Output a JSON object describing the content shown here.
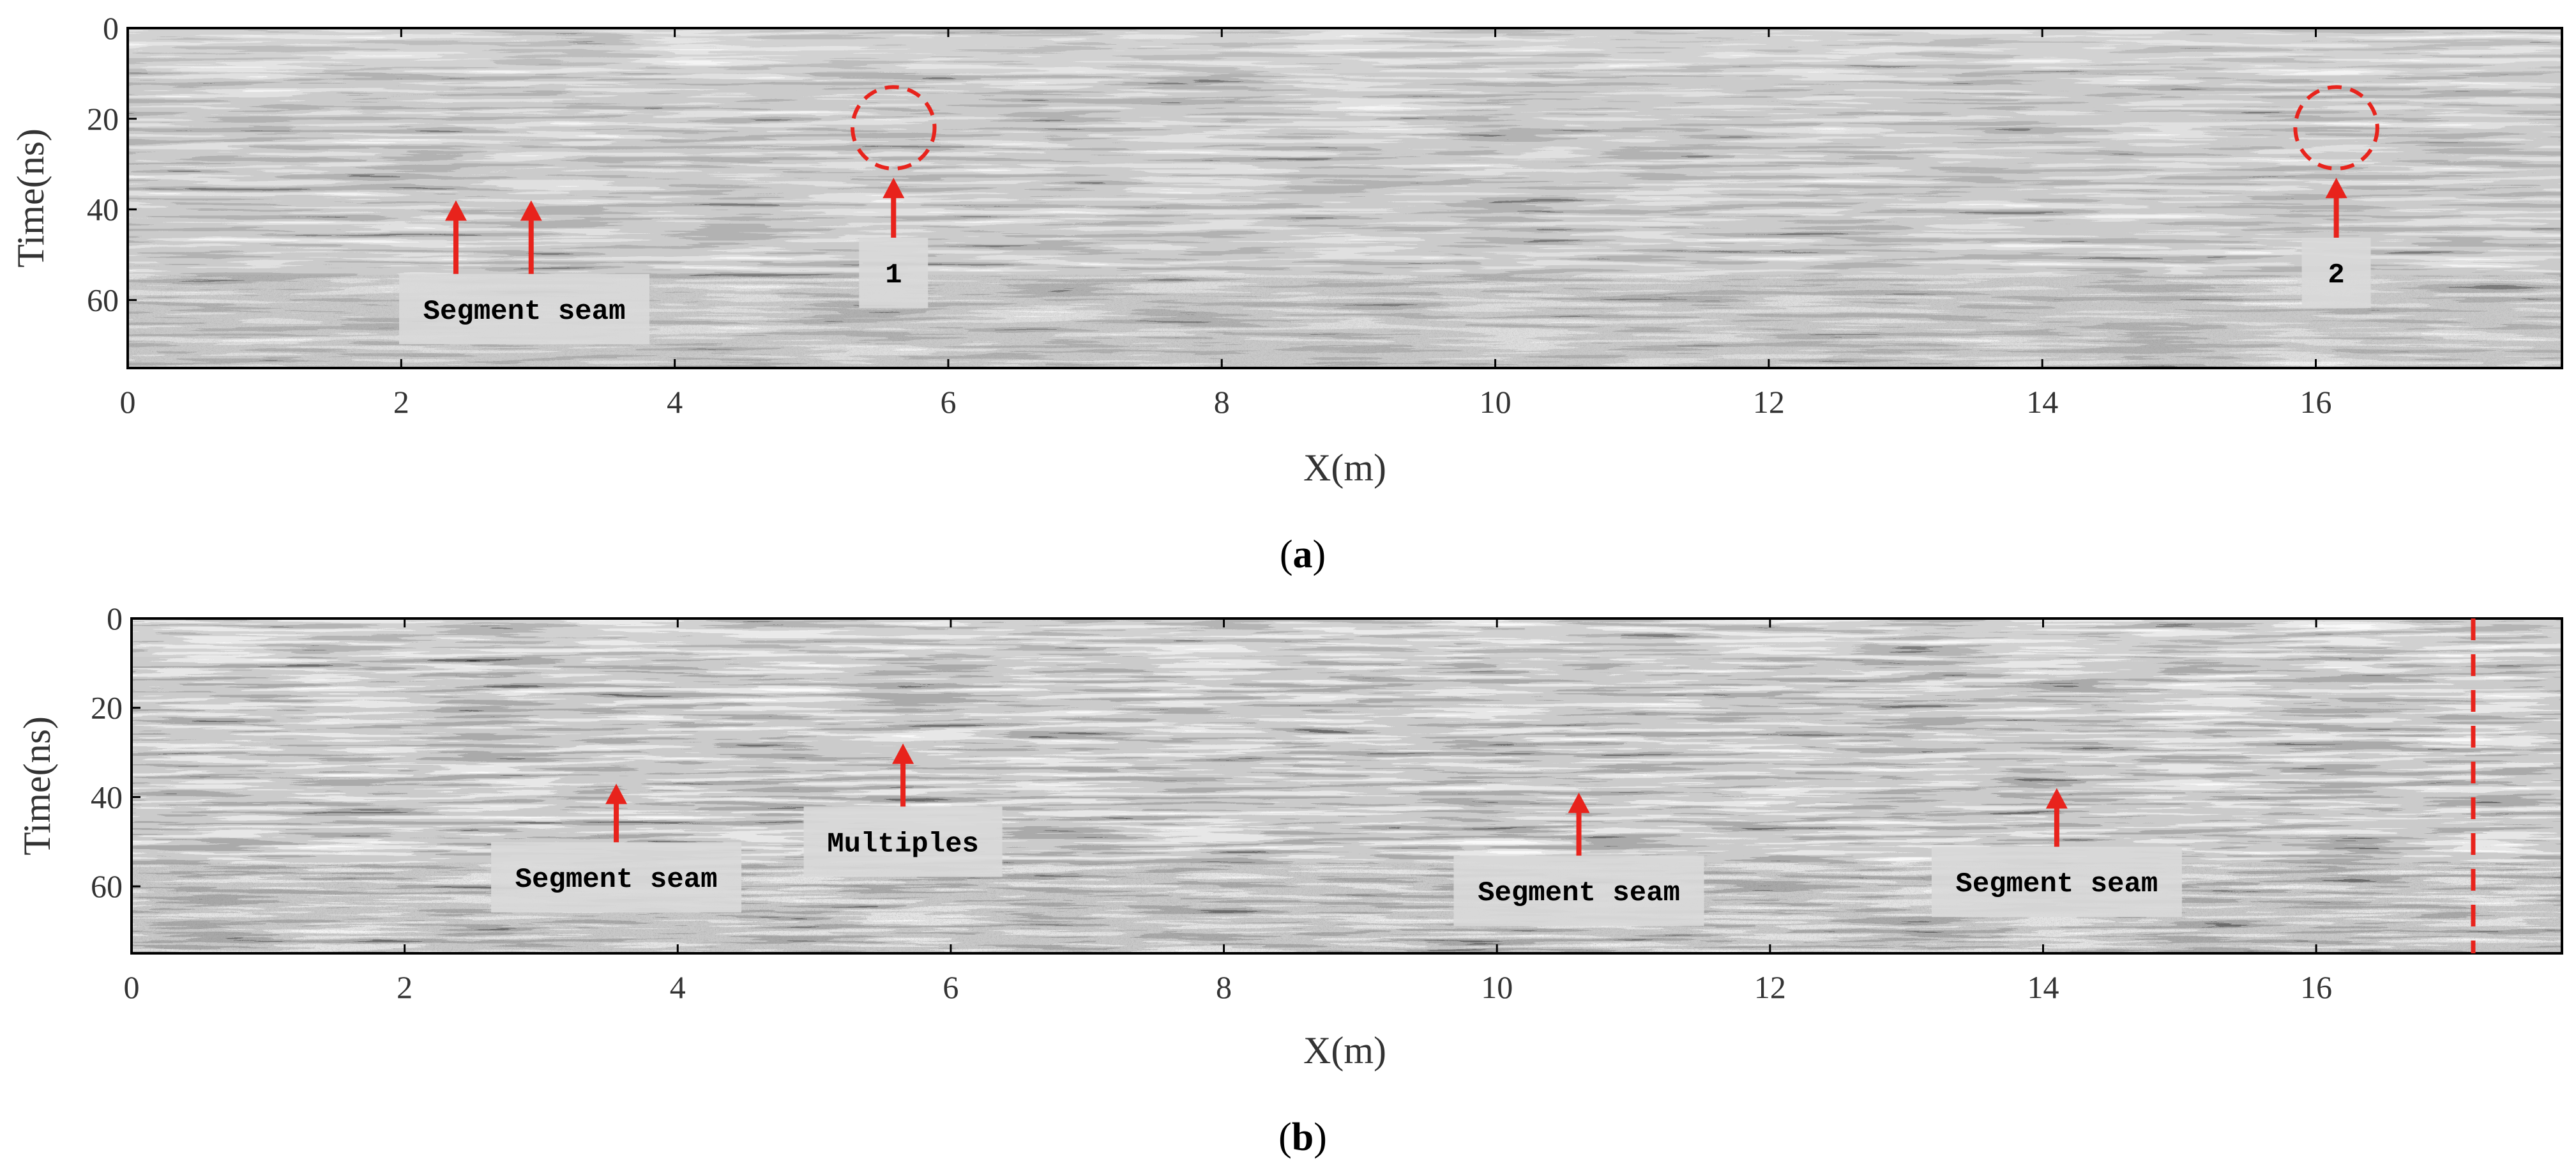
{
  "colors": {
    "annotation_red": "#e8231c",
    "label_box": "#d9d9d9",
    "frame": "#000000"
  },
  "chart_data": [
    {
      "type": "heatmap",
      "panel_label": "a",
      "xlabel": "X(m)",
      "ylabel": "Time(ns)",
      "xlim": [
        0,
        17.8
      ],
      "ylim": [
        75,
        0
      ],
      "xticks": [
        0,
        2,
        4,
        6,
        8,
        10,
        12,
        14,
        16
      ],
      "yticks": [
        0,
        20,
        40,
        60
      ],
      "colormap": "grayscale",
      "annotations": [
        {
          "kind": "label",
          "text": "Segment seam",
          "x": 2.9,
          "y": 62,
          "arrows": [
            {
              "x": 2.4,
              "y_tip": 38
            },
            {
              "x": 2.95,
              "y_tip": 38
            }
          ]
        },
        {
          "kind": "label",
          "text": "1",
          "x": 5.6,
          "y": 54,
          "arrows": [
            {
              "x": 5.6,
              "y_tip": 33
            }
          ],
          "circle": {
            "x": 5.6,
            "y": 22,
            "rx": 0.3,
            "ry": 9
          }
        },
        {
          "kind": "label",
          "text": "2",
          "x": 16.15,
          "y": 54,
          "arrows": [
            {
              "x": 16.15,
              "y_tip": 33
            }
          ],
          "circle": {
            "x": 16.15,
            "y": 22,
            "rx": 0.3,
            "ry": 9
          }
        }
      ]
    },
    {
      "type": "heatmap",
      "panel_label": "b",
      "xlabel": "X(m)",
      "ylabel": "Time(ns)",
      "xlim": [
        0,
        17.8
      ],
      "ylim": [
        75,
        0
      ],
      "xticks": [
        0,
        2,
        4,
        6,
        8,
        10,
        12,
        14,
        16
      ],
      "yticks": [
        0,
        20,
        40,
        60
      ],
      "colormap": "grayscale",
      "annotations": [
        {
          "kind": "label",
          "text": "Segment seam",
          "x": 3.55,
          "y": 58,
          "arrows": [
            {
              "x": 3.55,
              "y_tip": 37
            }
          ]
        },
        {
          "kind": "label",
          "text": "Multiples",
          "x": 5.65,
          "y": 50,
          "arrows": [
            {
              "x": 5.65,
              "y_tip": 28
            }
          ]
        },
        {
          "kind": "label",
          "text": "Segment seam",
          "x": 10.6,
          "y": 61,
          "arrows": [
            {
              "x": 10.6,
              "y_tip": 39
            }
          ]
        },
        {
          "kind": "label",
          "text": "Segment seam",
          "x": 14.1,
          "y": 59,
          "arrows": [
            {
              "x": 14.1,
              "y_tip": 38
            }
          ]
        },
        {
          "kind": "dashed_line",
          "x": 17.15
        }
      ]
    }
  ],
  "captions": [
    "(a)",
    "(b)"
  ]
}
